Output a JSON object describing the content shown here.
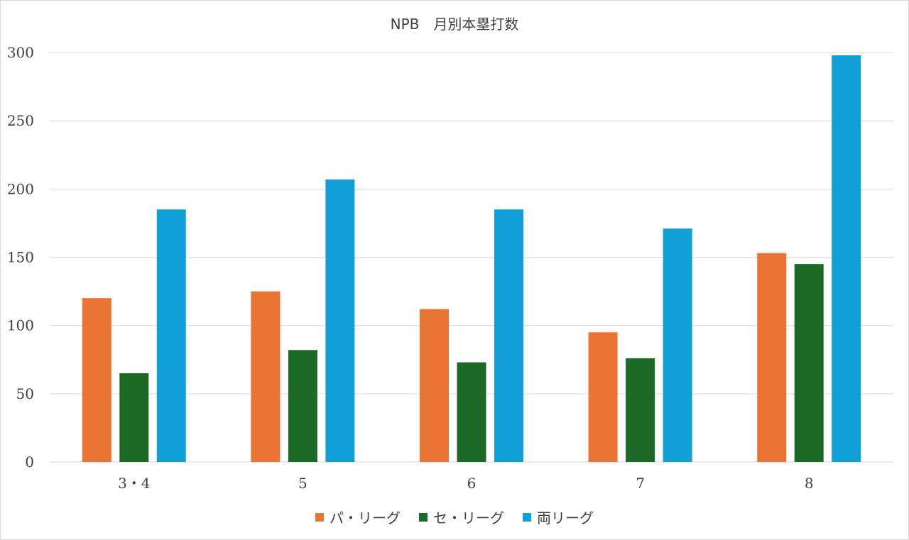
{
  "chart_data": {
    "type": "bar",
    "title": "NPB　月別本塁打数",
    "xlabel": "",
    "ylabel": "",
    "categories": [
      "3・4",
      "5",
      "6",
      "7",
      "8"
    ],
    "series": [
      {
        "name": "パ・リーグ",
        "color": "#ea7433",
        "values": [
          120,
          125,
          112,
          95,
          153
        ]
      },
      {
        "name": "セ・リーグ",
        "color": "#1b6b26",
        "values": [
          65,
          82,
          73,
          76,
          145
        ]
      },
      {
        "name": "両リーグ",
        "color": "#119fd7",
        "values": [
          185,
          207,
          185,
          171,
          298
        ]
      }
    ],
    "ylim": [
      0,
      300
    ],
    "yticks": [
      0,
      50,
      100,
      150,
      200,
      250,
      300
    ],
    "grid": true,
    "legend_position": "bottom"
  }
}
